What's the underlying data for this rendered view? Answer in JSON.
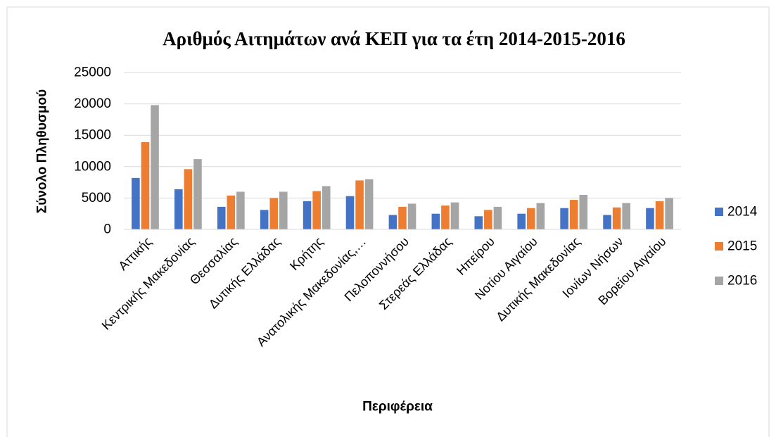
{
  "chart_data": {
    "type": "bar",
    "title": "Αριθμός Αιτημάτων ανά ΚΕΠ για τα έτη 2014-2015-2016",
    "x_label": "Περιφέρεια",
    "y_label": "Σύνολο Πληθυσμού",
    "categories": [
      "Αττικής",
      "Κεντρικής Μακεδονίας",
      "Θεσσαλίας",
      "Δυτικής Ελλάδας",
      "Κρήτης",
      "Ανατολικής Μακεδονίας,…",
      "Πελοποννήσου",
      "Στερεάς Ελλάδας",
      "Ηπείρου",
      "Νοτίου Αιγαίου",
      "Δυτικής Μακεδονίας",
      "Ιονίων Νήσων",
      "Βορείου Αιγαίου"
    ],
    "series": [
      {
        "name": "2014",
        "color": "#4472c4",
        "values": [
          8200,
          6400,
          3600,
          3100,
          4500,
          5300,
          2300,
          2500,
          2100,
          2500,
          3400,
          2300,
          3400
        ]
      },
      {
        "name": "2015",
        "color": "#ed7d31",
        "values": [
          13900,
          9600,
          5400,
          5000,
          6100,
          7800,
          3600,
          3800,
          3100,
          3400,
          4700,
          3500,
          4500
        ]
      },
      {
        "name": "2016",
        "color": "#a5a5a5",
        "values": [
          19800,
          11200,
          6000,
          6000,
          6900,
          8000,
          4100,
          4300,
          3600,
          4200,
          5500,
          4200,
          5000
        ]
      }
    ],
    "ylim": [
      0,
      25000
    ],
    "yticks": [
      0,
      5000,
      10000,
      15000,
      20000,
      25000
    ],
    "grid": true,
    "legend": "right"
  }
}
